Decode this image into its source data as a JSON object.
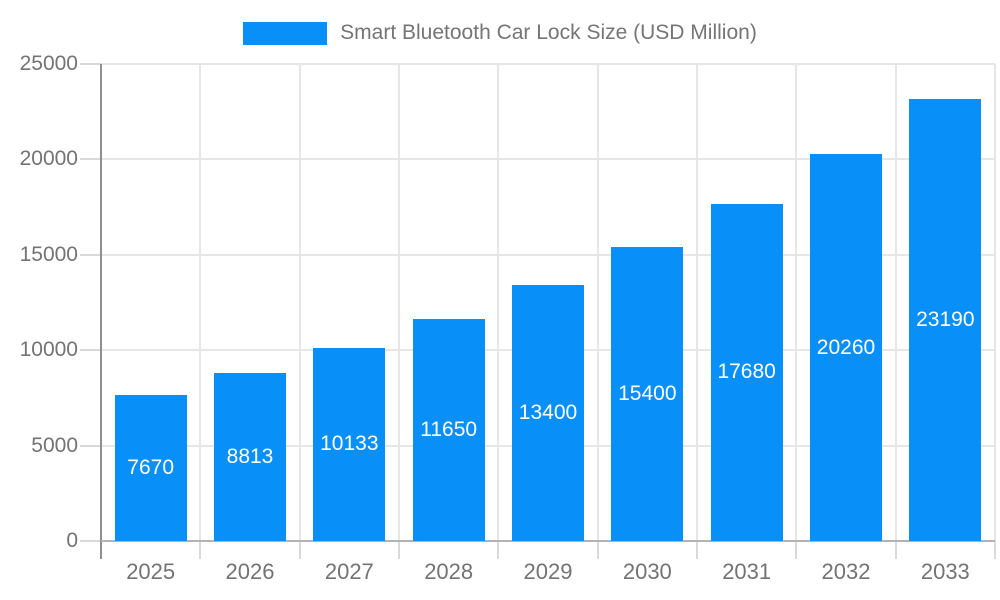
{
  "chart_data": {
    "type": "bar",
    "title": "Smart Bluetooth Car Lock Size (USD Million)",
    "categories": [
      "2025",
      "2026",
      "2027",
      "2028",
      "2029",
      "2030",
      "2031",
      "2032",
      "2033"
    ],
    "values": [
      7670,
      8813,
      10133,
      11650,
      13400,
      15400,
      17680,
      20260,
      23190
    ],
    "value_labels": [
      "7670",
      "8813",
      "10133",
      "11650",
      "13400",
      "15400",
      "17680",
      "20260",
      "23190"
    ],
    "xlabel": "",
    "ylabel": "",
    "ylim": [
      0,
      25000
    ],
    "yticks": [
      0,
      5000,
      10000,
      15000,
      20000,
      25000
    ],
    "ytick_labels": [
      "0",
      "5000",
      "10000",
      "15000",
      "20000",
      "25000"
    ],
    "grid": true,
    "legend_position": "top-center",
    "colors": {
      "bar": "#0990f8",
      "bar_label": "#ffffff",
      "grid": "#e6e6e6",
      "tick": "#d9d9d9",
      "y_axis": "#8f8f8f",
      "x_axis": "#b3b3b3",
      "text": "#737373",
      "background": "#ffffff"
    }
  }
}
